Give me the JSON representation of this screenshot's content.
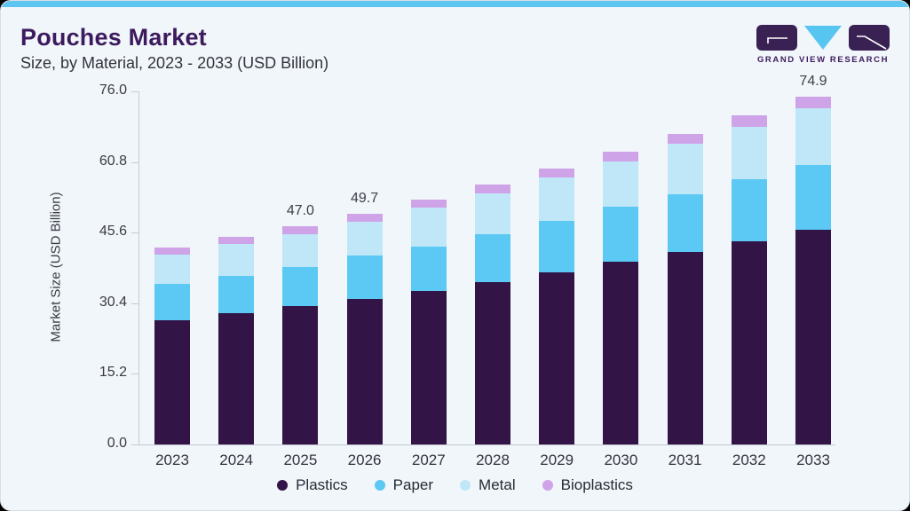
{
  "header": {
    "title": "Pouches Market",
    "subtitle": "Size, by Material, 2023 - 2033 (USD Billion)"
  },
  "logo": {
    "brand": "GRAND VIEW RESEARCH",
    "purple": "#3a2153",
    "blue": "#56c6f0"
  },
  "colors": {
    "accent_top_bar": "#5ec4f0",
    "card_background": "#f1f6fa",
    "title_purple": "#3d1a5e",
    "axis_line": "#c5cad3"
  },
  "chart_data": {
    "type": "bar",
    "stacked": true,
    "title": "Pouches Market Size, by Material, 2023 - 2033 (USD Billion)",
    "xlabel": "",
    "ylabel": "Market Size (USD Billion)",
    "ylim": [
      0,
      76.0
    ],
    "grid": false,
    "legend_position": "bottom",
    "categories": [
      "2023",
      "2024",
      "2025",
      "2026",
      "2027",
      "2028",
      "2029",
      "2030",
      "2031",
      "2032",
      "2033"
    ],
    "yticks": [
      {
        "label": "0.0",
        "value": 0.0
      },
      {
        "label": "15.2",
        "value": 15.2
      },
      {
        "label": "30.4",
        "value": 30.4
      },
      {
        "label": "45.6",
        "value": 45.6
      },
      {
        "label": "60.8",
        "value": 60.8
      },
      {
        "label": "76.0",
        "value": 76.0
      }
    ],
    "series": [
      {
        "name": "Plastics",
        "color": "#321447",
        "values": [
          26.8,
          28.2,
          29.7,
          31.3,
          33.1,
          35.0,
          37.1,
          39.3,
          41.4,
          43.7,
          46.2
        ]
      },
      {
        "name": "Paper",
        "color": "#5bc9f3",
        "values": [
          7.8,
          8.1,
          8.5,
          9.4,
          9.5,
          10.3,
          11.0,
          11.8,
          12.5,
          13.4,
          14.0
        ]
      },
      {
        "name": "Metal",
        "color": "#bfe7f8",
        "values": [
          6.3,
          6.8,
          7.0,
          7.2,
          8.3,
          8.7,
          9.4,
          9.9,
          10.9,
          11.3,
          12.1
        ]
      },
      {
        "name": "Bioplastics",
        "color": "#cfa3e8",
        "values": [
          1.4,
          1.5,
          1.8,
          1.8,
          1.8,
          1.9,
          1.9,
          2.0,
          2.0,
          2.4,
          2.6
        ]
      }
    ],
    "total_labels": [
      "",
      "",
      "47.0",
      "49.7",
      "",
      "",
      "",
      "",
      "",
      "",
      "74.9"
    ],
    "legend": [
      "Plastics",
      "Paper",
      "Metal",
      "Bioplastics"
    ]
  }
}
